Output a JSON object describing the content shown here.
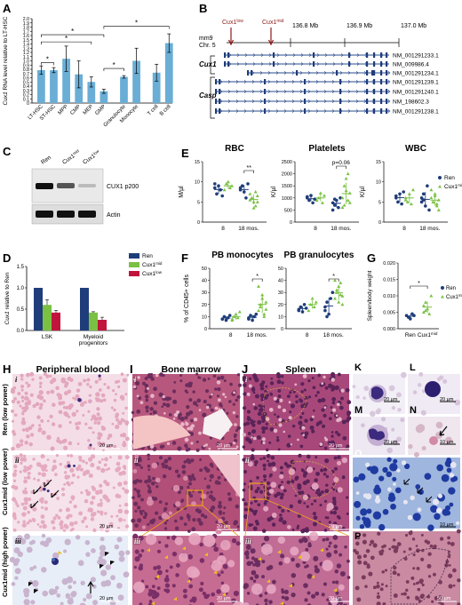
{
  "colors": {
    "ren": "#1f3d7a",
    "cux1mid": "#7ac143",
    "cux1low": "#c0143c",
    "bar": "#6aaed6",
    "he_bg": "#f2d3df",
    "he_dark": "#8a3c78"
  },
  "panels": {
    "A": {
      "label": "A",
      "ylabel_italic": "Cux1",
      "ylabel_rest": " RNA level relative to LT-HSC",
      "chart_data": {
        "type": "bar",
        "categories": [
          "LT-HSC",
          "ST-HSC",
          "MPP",
          "CMP",
          "MEP",
          "GMP",
          "Granulocyte",
          "Monocyte",
          "T cell",
          "B cell"
        ],
        "values": [
          0.78,
          0.78,
          1.05,
          0.68,
          0.5,
          0.28,
          0.62,
          1.0,
          0.72,
          1.42
        ],
        "errors": [
          0.1,
          0.06,
          0.3,
          0.32,
          0.12,
          0.05,
          0.03,
          0.3,
          0.2,
          0.22
        ],
        "ylim": [
          0,
          2.0
        ],
        "yticks": [
          "0",
          "0.1",
          "0.2",
          "0.3",
          "0.4",
          "0.5",
          "0.6",
          "0.7",
          "0.8",
          "0.9",
          "1.0",
          "1.1",
          "1.2",
          "1.3",
          "1.4",
          "1.5",
          "1.6",
          "1.7",
          "1.8",
          "1.9",
          "2.0"
        ],
        "sig": [
          "*",
          "*",
          "*",
          "*",
          "*"
        ]
      }
    },
    "B": {
      "label": "B",
      "build": "mm9",
      "chr": "Chr. 5",
      "mb": [
        "136.8 Mb",
        "136.9 Mb",
        "137.0 Mb"
      ],
      "markers": [
        "Cux1low",
        "Cux1mid"
      ],
      "gene1": "Cux1",
      "gene2": "Casp",
      "transcripts": [
        "NM_001291233.1",
        "NM_009986.4",
        "NM_001291234.1",
        "NM_001291239.1",
        "NM_001291240.1",
        "NM_198602.3",
        "NM_001291238.1"
      ]
    },
    "C": {
      "label": "C",
      "lanes": [
        "Ren",
        "Cux1mid",
        "Cux1low"
      ],
      "bands": [
        "CUX1 p200",
        "Actin"
      ]
    },
    "D": {
      "label": "D",
      "ylabel_italic": "Cux1",
      "ylabel_rest": " relative to Ren",
      "chart_data": {
        "type": "bar",
        "categories": [
          "LSK",
          "Myeloid progenitors"
        ],
        "series": [
          {
            "name": "Ren",
            "values": [
              1.0,
              1.0
            ]
          },
          {
            "name": "Cux1mid",
            "values": [
              0.6,
              0.42
            ]
          },
          {
            "name": "Cux1low",
            "values": [
              0.42,
              0.25
            ]
          }
        ],
        "errors": [
          [
            0,
            0
          ],
          [
            0.12,
            0.02
          ],
          [
            0.05,
            0.06
          ]
        ],
        "ylim": [
          0,
          1.5
        ],
        "yticks": [
          "0.0",
          "0.5",
          "1.0",
          "1.5"
        ]
      }
    },
    "E": {
      "label": "E",
      "charts": [
        {
          "title": "RBC",
          "ylabel": "M/µl",
          "ylim": [
            0,
            15
          ],
          "yticks": [
            "0",
            "5",
            "10",
            "15"
          ],
          "sig": "**",
          "pval": ""
        },
        {
          "title": "Platelets",
          "ylabel": "K/µl",
          "ylim": [
            0,
            2500
          ],
          "yticks": [
            "0",
            "500",
            "1000",
            "1500",
            "2000",
            "2500"
          ],
          "sig": "",
          "pval": "p=0.06"
        },
        {
          "title": "WBC",
          "ylabel": "K/µl",
          "ylim": [
            0,
            15
          ],
          "yticks": [
            "0",
            "5",
            "10",
            "15"
          ],
          "sig": "",
          "pval": ""
        }
      ],
      "xcats": [
        "8",
        "18 mos."
      ],
      "legend": [
        "Ren",
        "Cux1mid"
      ]
    },
    "F": {
      "label": "F",
      "charts": [
        {
          "title": "PB monocytes",
          "ylim": [
            0,
            50
          ],
          "yticks": [
            "0",
            "10",
            "20",
            "30",
            "40",
            "50"
          ],
          "sig": "*"
        },
        {
          "title": "PB granulocytes",
          "ylim": [
            0,
            50
          ],
          "yticks": [
            "0",
            "10",
            "20",
            "30",
            "40",
            "50"
          ],
          "sig": "*"
        }
      ],
      "ylabel": "% of CD45+ cells",
      "xcats": [
        "8",
        "18 mos."
      ]
    },
    "G": {
      "label": "G",
      "ylabel": "Spleen/body weight",
      "ylim": [
        0,
        0.02
      ],
      "yticks": [
        "0.000",
        "0.005",
        "0.010",
        "0.015",
        "0.020"
      ],
      "xcats": [
        "Ren",
        "Cux1mid"
      ],
      "sig": "*",
      "legend": [
        "Ren",
        "Cux1mid"
      ]
    },
    "H": {
      "label": "H",
      "title": "Peripheral blood",
      "rows": [
        "Ren (low power)",
        "Cux1mid (low power)",
        "Cux1mid (high power)"
      ],
      "sub": [
        "i",
        "ii",
        "iii"
      ]
    },
    "I": {
      "label": "I",
      "title": "Bone marrow",
      "sub": [
        "i",
        "ii",
        "iii"
      ]
    },
    "J": {
      "label": "J",
      "title": "Spleen",
      "sub": [
        "i",
        "ii",
        "iii"
      ]
    },
    "K": {
      "label": "K"
    },
    "L": {
      "label": "L"
    },
    "M": {
      "label": "M"
    },
    "N": {
      "label": "N"
    },
    "O": {
      "label": "O"
    },
    "P": {
      "label": "P"
    },
    "scales": {
      "s20": "20 µm",
      "s10": "10 µm",
      "s50": "50 µm"
    }
  }
}
